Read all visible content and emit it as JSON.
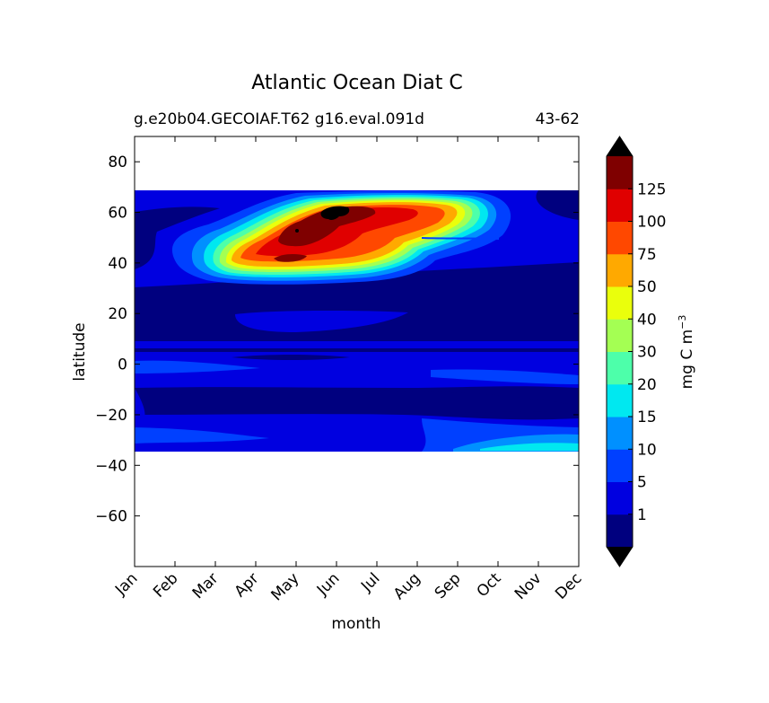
{
  "chart_data": {
    "type": "heatmap",
    "title": "Atlantic Ocean Diat C",
    "subtitle_left": "g.e20b04.GECOIAF.T62 g16.eval.091d",
    "subtitle_right": "43-62",
    "xlabel": "month",
    "ylabel": "latitude",
    "x_ticks": [
      "Jan",
      "Feb",
      "Mar",
      "Apr",
      "May",
      "Jun",
      "Jul",
      "Aug",
      "Sep",
      "Oct",
      "Nov",
      "Dec"
    ],
    "ylim": [
      -80,
      90
    ],
    "y_ticks": [
      80,
      60,
      40,
      20,
      0,
      -20,
      -40,
      -60
    ],
    "y_tick_labels": [
      "80",
      "60",
      "40",
      "20",
      "0",
      "−20",
      "−40",
      "−60"
    ],
    "data_lat_range": [
      -34,
      68
    ],
    "colorbar": {
      "label": "mg C m",
      "label_sup": "−3",
      "levels": [
        0,
        1,
        5,
        10,
        15,
        20,
        30,
        40,
        50,
        75,
        100,
        125,
        150
      ],
      "tick_labels": [
        "1",
        "5",
        "10",
        "15",
        "20",
        "30",
        "40",
        "50",
        "75",
        "100",
        "125"
      ],
      "colors": [
        "#00007f",
        "#0000e0",
        "#0040ff",
        "#0090ff",
        "#00e8f0",
        "#4dffaa",
        "#a4ff53",
        "#eaff0c",
        "#ffa900",
        "#ff4800",
        "#e00000",
        "#7f0000"
      ],
      "extend_low_color": "#000000",
      "extend_high_color": "#000000"
    },
    "bands": [
      {
        "region": "Jan, 62-68N",
        "approx_value": 0.5
      },
      {
        "region": "Jan-Dec, 30-38N",
        "approx_value": 0.5
      },
      {
        "region": "Jan-Dec, 8-28N",
        "approx_value": 0.5
      },
      {
        "region": "Jan-Dec, 0-8N",
        "approx_value": 3
      },
      {
        "region": "Feb-Aug, 12-18S",
        "approx_value": 0.5
      },
      {
        "region": "Sep, 28-34S",
        "approx_value": 15
      }
    ],
    "peaks": [
      {
        "month": "Jun",
        "lat": 60,
        "approx_value": 150
      },
      {
        "month": "May",
        "lat": 52,
        "approx_value": 130
      },
      {
        "month": "May",
        "lat": 42,
        "approx_value": 125
      }
    ]
  }
}
